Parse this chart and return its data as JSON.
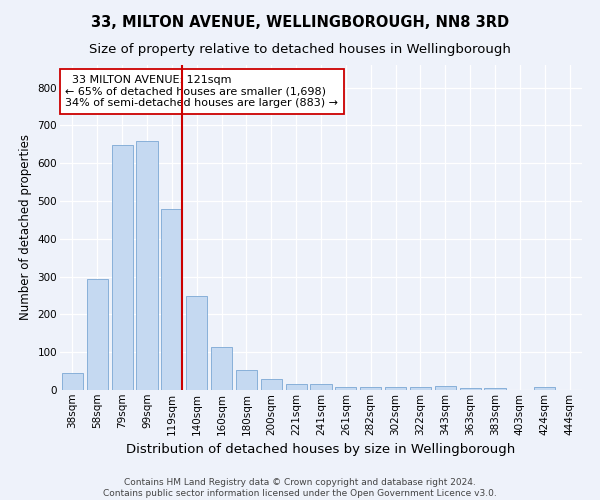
{
  "title": "33, MILTON AVENUE, WELLINGBOROUGH, NN8 3RD",
  "subtitle": "Size of property relative to detached houses in Wellingborough",
  "xlabel": "Distribution of detached houses by size in Wellingborough",
  "ylabel": "Number of detached properties",
  "categories": [
    "38sqm",
    "58sqm",
    "79sqm",
    "99sqm",
    "119sqm",
    "140sqm",
    "160sqm",
    "180sqm",
    "200sqm",
    "221sqm",
    "241sqm",
    "261sqm",
    "282sqm",
    "302sqm",
    "322sqm",
    "343sqm",
    "363sqm",
    "383sqm",
    "403sqm",
    "424sqm",
    "444sqm"
  ],
  "values": [
    45,
    293,
    648,
    658,
    478,
    250,
    115,
    52,
    28,
    17,
    15,
    8,
    7,
    8,
    8,
    10,
    5,
    5,
    1,
    8,
    1
  ],
  "bar_color": "#c5d9f1",
  "bar_edge_color": "#7ba7d4",
  "highlight_bar_index": 4,
  "highlight_line_color": "#cc0000",
  "annotation_line1": "  33 MILTON AVENUE: 121sqm",
  "annotation_line2": "← 65% of detached houses are smaller (1,698)",
  "annotation_line3": "34% of semi-detached houses are larger (883) →",
  "annotation_box_color": "#ffffff",
  "annotation_box_edge": "#cc0000",
  "ylim": [
    0,
    860
  ],
  "yticks": [
    0,
    100,
    200,
    300,
    400,
    500,
    600,
    700,
    800
  ],
  "background_color": "#eef2fa",
  "grid_color": "#ffffff",
  "footer_line1": "Contains HM Land Registry data © Crown copyright and database right 2024.",
  "footer_line2": "Contains public sector information licensed under the Open Government Licence v3.0.",
  "title_fontsize": 10.5,
  "subtitle_fontsize": 9.5,
  "xlabel_fontsize": 9.5,
  "ylabel_fontsize": 8.5,
  "tick_fontsize": 7.5,
  "annotation_fontsize": 8,
  "footer_fontsize": 6.5
}
